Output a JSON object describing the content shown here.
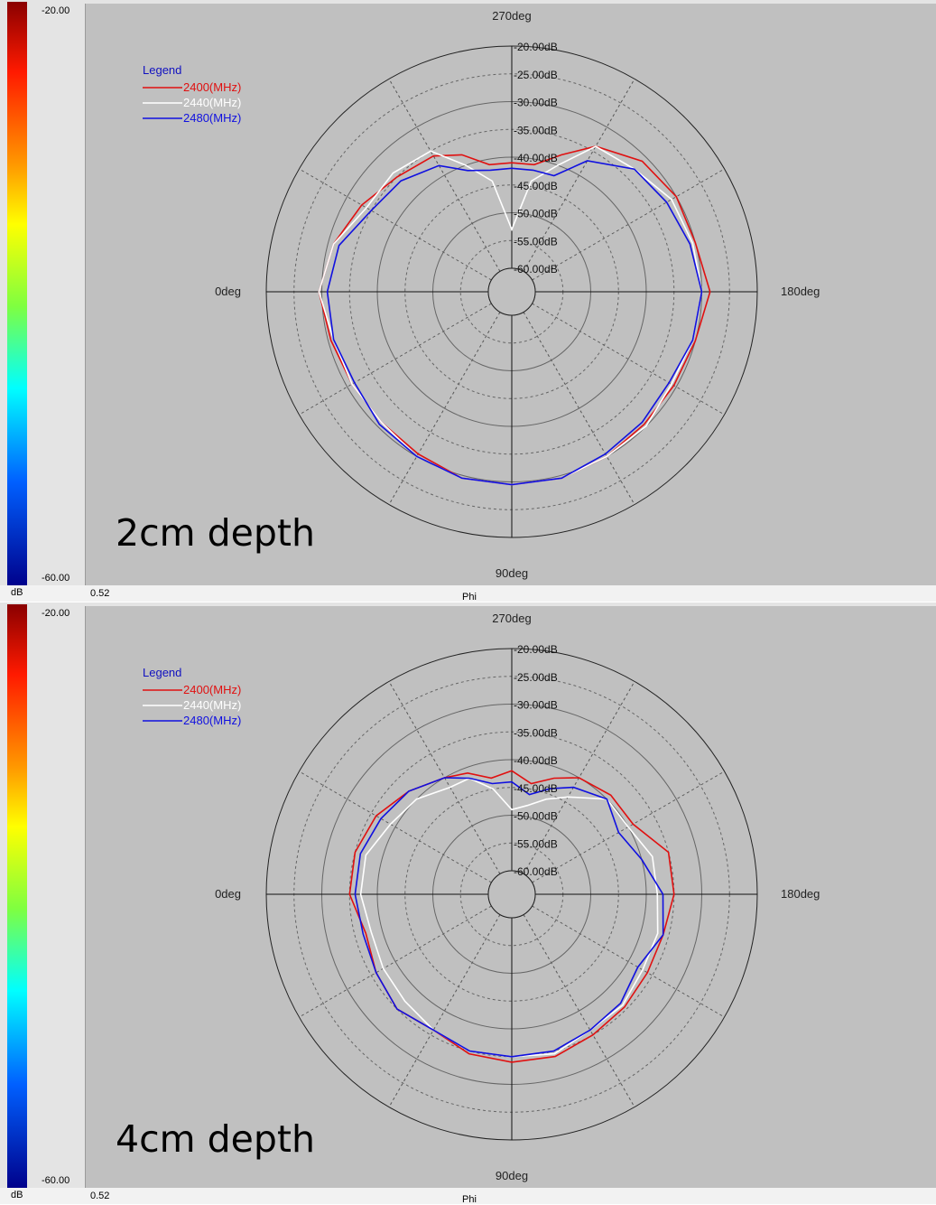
{
  "colorbar": {
    "max": "-20.00",
    "min": "-60.00",
    "unit": "dB"
  },
  "footer": {
    "value": "0.52",
    "axis": "Phi"
  },
  "polar": {
    "angle_labels": {
      "top": "270deg",
      "left": "0deg",
      "right": "180deg",
      "bottom": "90deg"
    },
    "rings": [
      "-20.00dB",
      "-25.00dB",
      "-30.00dB",
      "-35.00dB",
      "-40.00dB",
      "-45.00dB",
      "-50.00dB",
      "-55.00dB",
      "-60.00dB"
    ]
  },
  "legend": {
    "title": "Legend",
    "colors": [
      "#e01010",
      "#ffffff",
      "#1010e0"
    ]
  },
  "chart_data": [
    {
      "type": "polar_line",
      "annotation": "2cm depth",
      "r_range_db": [
        -60,
        -20
      ],
      "angle_unit": "deg",
      "series": [
        {
          "name": "2400(MHz)",
          "color": "#e01010",
          "angles": [
            0,
            15,
            30,
            45,
            60,
            75,
            90,
            105,
            120,
            135,
            150,
            165,
            180,
            195,
            210,
            225,
            240,
            250,
            260,
            270,
            280,
            290,
            300,
            315,
            330,
            345
          ],
          "values": [
            -29.5,
            -30.5,
            -31,
            -31,
            -30.5,
            -29.5,
            -29.5,
            -29.5,
            -30,
            -30.5,
            -30.5,
            -30,
            -28.5,
            -30,
            -30,
            -31,
            -34,
            -38,
            -41,
            -41,
            -41,
            -38,
            -36,
            -35,
            -33,
            -31
          ]
        },
        {
          "name": "2440(MHz)",
          "color": "#ffffff",
          "angles": [
            0,
            15,
            30,
            45,
            60,
            75,
            90,
            105,
            120,
            135,
            150,
            165,
            180,
            195,
            210,
            225,
            240,
            250,
            260,
            270,
            280,
            290,
            300,
            315,
            330,
            345
          ],
          "values": [
            -29.5,
            -31,
            -31,
            -31,
            -30,
            -29.5,
            -29.5,
            -29.5,
            -30,
            -30,
            -31,
            -30.5,
            -30,
            -30.5,
            -31,
            -33,
            -34,
            -40,
            -44,
            -53,
            -44,
            -40,
            -35,
            -34,
            -34,
            -31
          ]
        },
        {
          "name": "2480(MHz)",
          "color": "#1010e0",
          "angles": [
            0,
            15,
            30,
            45,
            60,
            75,
            90,
            105,
            120,
            135,
            150,
            165,
            180,
            195,
            210,
            225,
            240,
            250,
            260,
            270,
            280,
            290,
            300,
            315,
            330,
            345
          ],
          "values": [
            -31,
            -31,
            -31.5,
            -30.5,
            -30,
            -29.5,
            -29.5,
            -29.5,
            -30.5,
            -31,
            -31.5,
            -30.5,
            -30,
            -31,
            -32,
            -33,
            -37,
            -42,
            -42,
            -42,
            -42,
            -41,
            -38,
            -36,
            -35,
            -32
          ]
        }
      ]
    },
    {
      "type": "polar_line",
      "annotation": "4cm depth",
      "r_range_db": [
        -60,
        -20
      ],
      "angle_unit": "deg",
      "series": [
        {
          "name": "2400(MHz)",
          "color": "#e01010",
          "angles": [
            0,
            15,
            30,
            45,
            60,
            75,
            90,
            105,
            120,
            135,
            150,
            165,
            180,
            195,
            210,
            225,
            240,
            250,
            260,
            270,
            280,
            290,
            300,
            315,
            330,
            345
          ],
          "values": [
            -35,
            -37,
            -36,
            -35,
            -36,
            -34.5,
            -34,
            -34,
            -35,
            -35.5,
            -36,
            -36,
            -35,
            -35,
            -39,
            -39,
            -40,
            -42,
            -44,
            -42,
            -43,
            -41,
            -40,
            -38,
            -36,
            -35
          ]
        },
        {
          "name": "2440(MHz)",
          "color": "#ffffff",
          "angles": [
            0,
            15,
            30,
            45,
            60,
            75,
            90,
            105,
            120,
            135,
            150,
            165,
            180,
            195,
            210,
            225,
            240,
            250,
            260,
            270,
            280,
            290,
            300,
            315,
            330,
            345
          ],
          "values": [
            -37,
            -38,
            -37.5,
            -37,
            -36,
            -35,
            -35,
            -34.5,
            -36,
            -36,
            -37,
            -37,
            -38,
            -38,
            -40,
            -40,
            -44,
            -46,
            -48,
            -49,
            -45,
            -42,
            -42,
            -40,
            -39,
            -37
          ]
        },
        {
          "name": "2480(MHz)",
          "color": "#1010e0",
          "angles": [
            0,
            15,
            30,
            45,
            60,
            75,
            90,
            105,
            120,
            135,
            150,
            165,
            180,
            195,
            210,
            225,
            240,
            250,
            260,
            270,
            280,
            290,
            300,
            315,
            330,
            345
          ],
          "values": [
            -36,
            -36.5,
            -36,
            -35,
            -36,
            -35,
            -35,
            -35,
            -36,
            -36.5,
            -38,
            -36,
            -37,
            -40,
            -42,
            -40,
            -42,
            -44,
            -46,
            -44,
            -44,
            -42,
            -40,
            -38,
            -37,
            -36
          ]
        }
      ]
    }
  ]
}
